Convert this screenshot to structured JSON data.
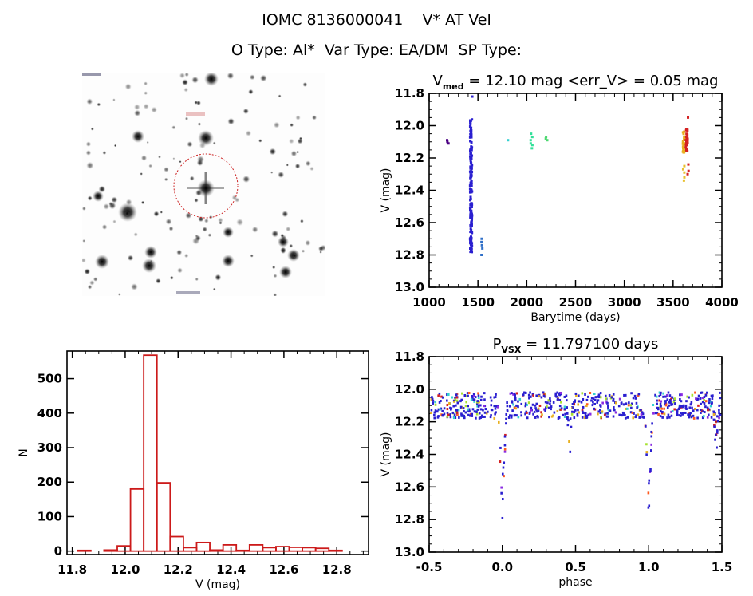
{
  "header": {
    "line1": "IOMC 8136000041    V* AT Vel",
    "line2": "O Type: Al*  Var Type: EA/DM  SP Type:"
  },
  "image_panel": {
    "description": "star field finder chart with red dashed circle around target",
    "circle_color": "#cc2222"
  },
  "chart_data": [
    {
      "type": "scatter",
      "name": "light-curve",
      "title_main": "V",
      "title_sub": "med",
      "title_rest": " = 12.10 mag <err_V> = 0.05 mag",
      "xlabel": "Barytime (days)",
      "ylabel": "V (mag)",
      "xlim": [
        1000,
        4000
      ],
      "ylim": [
        13.0,
        11.8
      ],
      "xticks": [
        "1000",
        "1500",
        "2000",
        "2500",
        "3000",
        "3500",
        "4000"
      ],
      "yticks": [
        "11.8",
        "12.0",
        "12.2",
        "12.4",
        "12.6",
        "12.8",
        "13.0"
      ],
      "groups": [
        {
          "x": 1190,
          "v": [
            12.09,
            12.1,
            12.11
          ],
          "color": "#4b0082"
        },
        {
          "x": 1430,
          "v_range": [
            11.96,
            12.79
          ],
          "n": 160,
          "color": "#2a1fd0"
        },
        {
          "x": 1440,
          "v": [
            11.82
          ],
          "color": "#2a1fd0"
        },
        {
          "x": 1545,
          "v": [
            12.7,
            12.72,
            12.74,
            12.76,
            12.8
          ],
          "color": "#2f6fc8"
        },
        {
          "x": 1800,
          "v": [
            12.09
          ],
          "color": "#33d0d0"
        },
        {
          "x": 2050,
          "v": [
            12.05,
            12.07,
            12.09,
            12.11,
            12.12,
            12.14
          ],
          "color": "#33e09a"
        },
        {
          "x": 2200,
          "v": [
            12.07,
            12.08,
            12.09
          ],
          "color": "#4cd870"
        },
        {
          "x": 3610,
          "v_range": [
            12.03,
            12.17
          ],
          "n": 30,
          "color": "#e8b020"
        },
        {
          "x": 3612,
          "v": [
            12.25,
            12.27,
            12.29,
            12.32,
            12.34
          ],
          "color": "#e8c030"
        },
        {
          "x": 3640,
          "v_range": [
            12.02,
            12.17
          ],
          "n": 30,
          "color": "#d42020"
        },
        {
          "x": 3650,
          "v": [
            11.95,
            12.24,
            12.28,
            12.3
          ],
          "color": "#d42020"
        }
      ]
    },
    {
      "type": "bar",
      "name": "histogram",
      "xlabel": "V (mag)",
      "ylabel": "N",
      "xlim": [
        11.78,
        12.92
      ],
      "ylim": [
        -10,
        580
      ],
      "xticks": [
        "11.8",
        "12.0",
        "12.2",
        "12.4",
        "12.6",
        "12.8"
      ],
      "yticks": [
        "0",
        "100",
        "200",
        "300",
        "400",
        "500"
      ],
      "bin_start": 11.82,
      "bin_width": 0.05,
      "values": [
        2,
        0,
        3,
        15,
        180,
        568,
        198,
        42,
        10,
        25,
        3,
        18,
        2,
        18,
        10,
        13,
        11,
        10,
        8,
        2
      ],
      "color": "#cc1a1a"
    },
    {
      "type": "scatter",
      "name": "phased-light-curve",
      "title_main": "P",
      "title_sub": "VSX",
      "title_rest": " = 11.797100 days",
      "xlabel": "phase",
      "ylabel": "V (mag)",
      "xlim": [
        -0.5,
        1.5
      ],
      "ylim": [
        13.0,
        11.8
      ],
      "xticks": [
        "-0.5",
        "0.0",
        "0.5",
        "1.0",
        "1.5"
      ],
      "yticks": [
        "11.8",
        "12.0",
        "12.2",
        "12.4",
        "12.6",
        "12.8",
        "13.0"
      ],
      "period_days": 11.7971,
      "baseline_mag": 12.1,
      "primary_eclipse": {
        "phase": 0.0,
        "depth_mag": 12.81,
        "halfwidth": 0.03
      },
      "secondary_eclipse": {
        "phase": 0.46,
        "depth_mag": 12.45,
        "halfwidth": 0.02
      },
      "colors": [
        "#2a1fd0",
        "#d42020",
        "#e8b020",
        "#a6e22e",
        "#ff5a1f",
        "#8a2be2",
        "#33d0d0"
      ]
    }
  ]
}
